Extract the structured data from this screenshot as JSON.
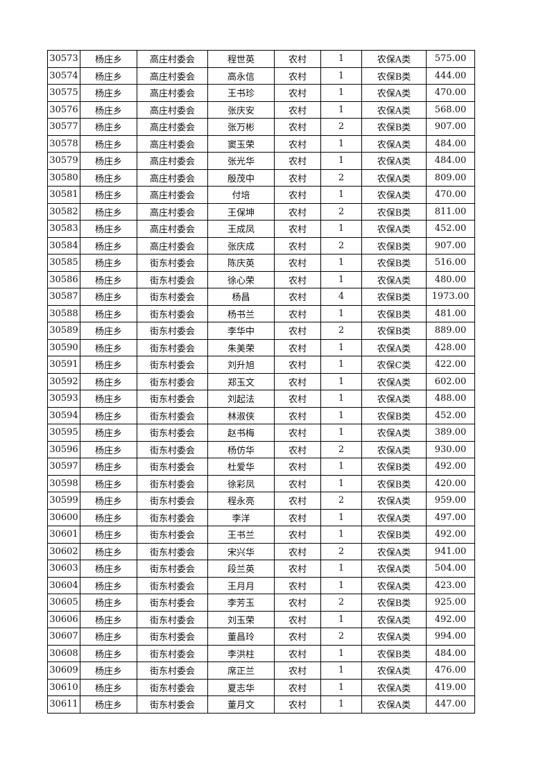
{
  "table": {
    "columns": [
      "id",
      "township",
      "village_committee",
      "name",
      "household_type",
      "count",
      "category",
      "amount"
    ],
    "rows": [
      [
        "30573",
        "杨庄乡",
        "高庄村委会",
        "程世英",
        "农村",
        "1",
        "农保A类",
        "575.00"
      ],
      [
        "30574",
        "杨庄乡",
        "高庄村委会",
        "高永信",
        "农村",
        "1",
        "农保B类",
        "444.00"
      ],
      [
        "30575",
        "杨庄乡",
        "高庄村委会",
        "王书珍",
        "农村",
        "1",
        "农保A类",
        "470.00"
      ],
      [
        "30576",
        "杨庄乡",
        "高庄村委会",
        "张庆安",
        "农村",
        "1",
        "农保A类",
        "568.00"
      ],
      [
        "30577",
        "杨庄乡",
        "高庄村委会",
        "张万彬",
        "农村",
        "2",
        "农保B类",
        "907.00"
      ],
      [
        "30578",
        "杨庄乡",
        "高庄村委会",
        "窦玉荣",
        "农村",
        "1",
        "农保A类",
        "484.00"
      ],
      [
        "30579",
        "杨庄乡",
        "高庄村委会",
        "张光华",
        "农村",
        "1",
        "农保A类",
        "484.00"
      ],
      [
        "30580",
        "杨庄乡",
        "高庄村委会",
        "殷茂中",
        "农村",
        "2",
        "农保A类",
        "809.00"
      ],
      [
        "30581",
        "杨庄乡",
        "高庄村委会",
        "付培",
        "农村",
        "1",
        "农保A类",
        "470.00"
      ],
      [
        "30582",
        "杨庄乡",
        "高庄村委会",
        "王保坤",
        "农村",
        "2",
        "农保B类",
        "811.00"
      ],
      [
        "30583",
        "杨庄乡",
        "高庄村委会",
        "王成凤",
        "农村",
        "1",
        "农保A类",
        "452.00"
      ],
      [
        "30584",
        "杨庄乡",
        "高庄村委会",
        "张庆成",
        "农村",
        "2",
        "农保B类",
        "907.00"
      ],
      [
        "30585",
        "杨庄乡",
        "街东村委会",
        "陈庆英",
        "农村",
        "1",
        "农保B类",
        "516.00"
      ],
      [
        "30586",
        "杨庄乡",
        "街东村委会",
        "徐心荣",
        "农村",
        "1",
        "农保A类",
        "480.00"
      ],
      [
        "30587",
        "杨庄乡",
        "街东村委会",
        "杨昌",
        "农村",
        "4",
        "农保B类",
        "1973.00"
      ],
      [
        "30588",
        "杨庄乡",
        "街东村委会",
        "杨书兰",
        "农村",
        "1",
        "农保B类",
        "481.00"
      ],
      [
        "30589",
        "杨庄乡",
        "街东村委会",
        "李华中",
        "农村",
        "2",
        "农保B类",
        "889.00"
      ],
      [
        "30590",
        "杨庄乡",
        "街东村委会",
        "朱美荣",
        "农村",
        "1",
        "农保A类",
        "428.00"
      ],
      [
        "30591",
        "杨庄乡",
        "街东村委会",
        "刘升旭",
        "农村",
        "1",
        "农保C类",
        "422.00"
      ],
      [
        "30592",
        "杨庄乡",
        "街东村委会",
        "郑玉文",
        "农村",
        "1",
        "农保A类",
        "602.00"
      ],
      [
        "30593",
        "杨庄乡",
        "街东村委会",
        "刘起法",
        "农村",
        "1",
        "农保A类",
        "488.00"
      ],
      [
        "30594",
        "杨庄乡",
        "街东村委会",
        "林淑侠",
        "农村",
        "1",
        "农保B类",
        "452.00"
      ],
      [
        "30595",
        "杨庄乡",
        "街东村委会",
        "赵书梅",
        "农村",
        "1",
        "农保A类",
        "389.00"
      ],
      [
        "30596",
        "杨庄乡",
        "街东村委会",
        "杨仿华",
        "农村",
        "2",
        "农保A类",
        "930.00"
      ],
      [
        "30597",
        "杨庄乡",
        "街东村委会",
        "杜爱华",
        "农村",
        "1",
        "农保B类",
        "492.00"
      ],
      [
        "30598",
        "杨庄乡",
        "街东村委会",
        "徐彩凤",
        "农村",
        "1",
        "农保B类",
        "420.00"
      ],
      [
        "30599",
        "杨庄乡",
        "街东村委会",
        "程永亮",
        "农村",
        "2",
        "农保A类",
        "959.00"
      ],
      [
        "30600",
        "杨庄乡",
        "街东村委会",
        "李洋",
        "农村",
        "1",
        "农保A类",
        "497.00"
      ],
      [
        "30601",
        "杨庄乡",
        "街东村委会",
        "王书兰",
        "农村",
        "1",
        "农保B类",
        "492.00"
      ],
      [
        "30602",
        "杨庄乡",
        "街东村委会",
        "宋兴华",
        "农村",
        "2",
        "农保A类",
        "941.00"
      ],
      [
        "30603",
        "杨庄乡",
        "街东村委会",
        "段兰英",
        "农村",
        "1",
        "农保A类",
        "504.00"
      ],
      [
        "30604",
        "杨庄乡",
        "街东村委会",
        "王月月",
        "农村",
        "1",
        "农保A类",
        "423.00"
      ],
      [
        "30605",
        "杨庄乡",
        "街东村委会",
        "李芳玉",
        "农村",
        "2",
        "农保B类",
        "925.00"
      ],
      [
        "30606",
        "杨庄乡",
        "街东村委会",
        "刘玉荣",
        "农村",
        "1",
        "农保A类",
        "492.00"
      ],
      [
        "30607",
        "杨庄乡",
        "街东村委会",
        "董昌玲",
        "农村",
        "2",
        "农保A类",
        "994.00"
      ],
      [
        "30608",
        "杨庄乡",
        "街东村委会",
        "李洪柱",
        "农村",
        "1",
        "农保B类",
        "484.00"
      ],
      [
        "30609",
        "杨庄乡",
        "街东村委会",
        "席正兰",
        "农村",
        "1",
        "农保A类",
        "476.00"
      ],
      [
        "30610",
        "杨庄乡",
        "街东村委会",
        "夏志华",
        "农村",
        "1",
        "农保A类",
        "419.00"
      ],
      [
        "30611",
        "杨庄乡",
        "街东村委会",
        "董月文",
        "农村",
        "1",
        "农保A类",
        "447.00"
      ]
    ]
  }
}
